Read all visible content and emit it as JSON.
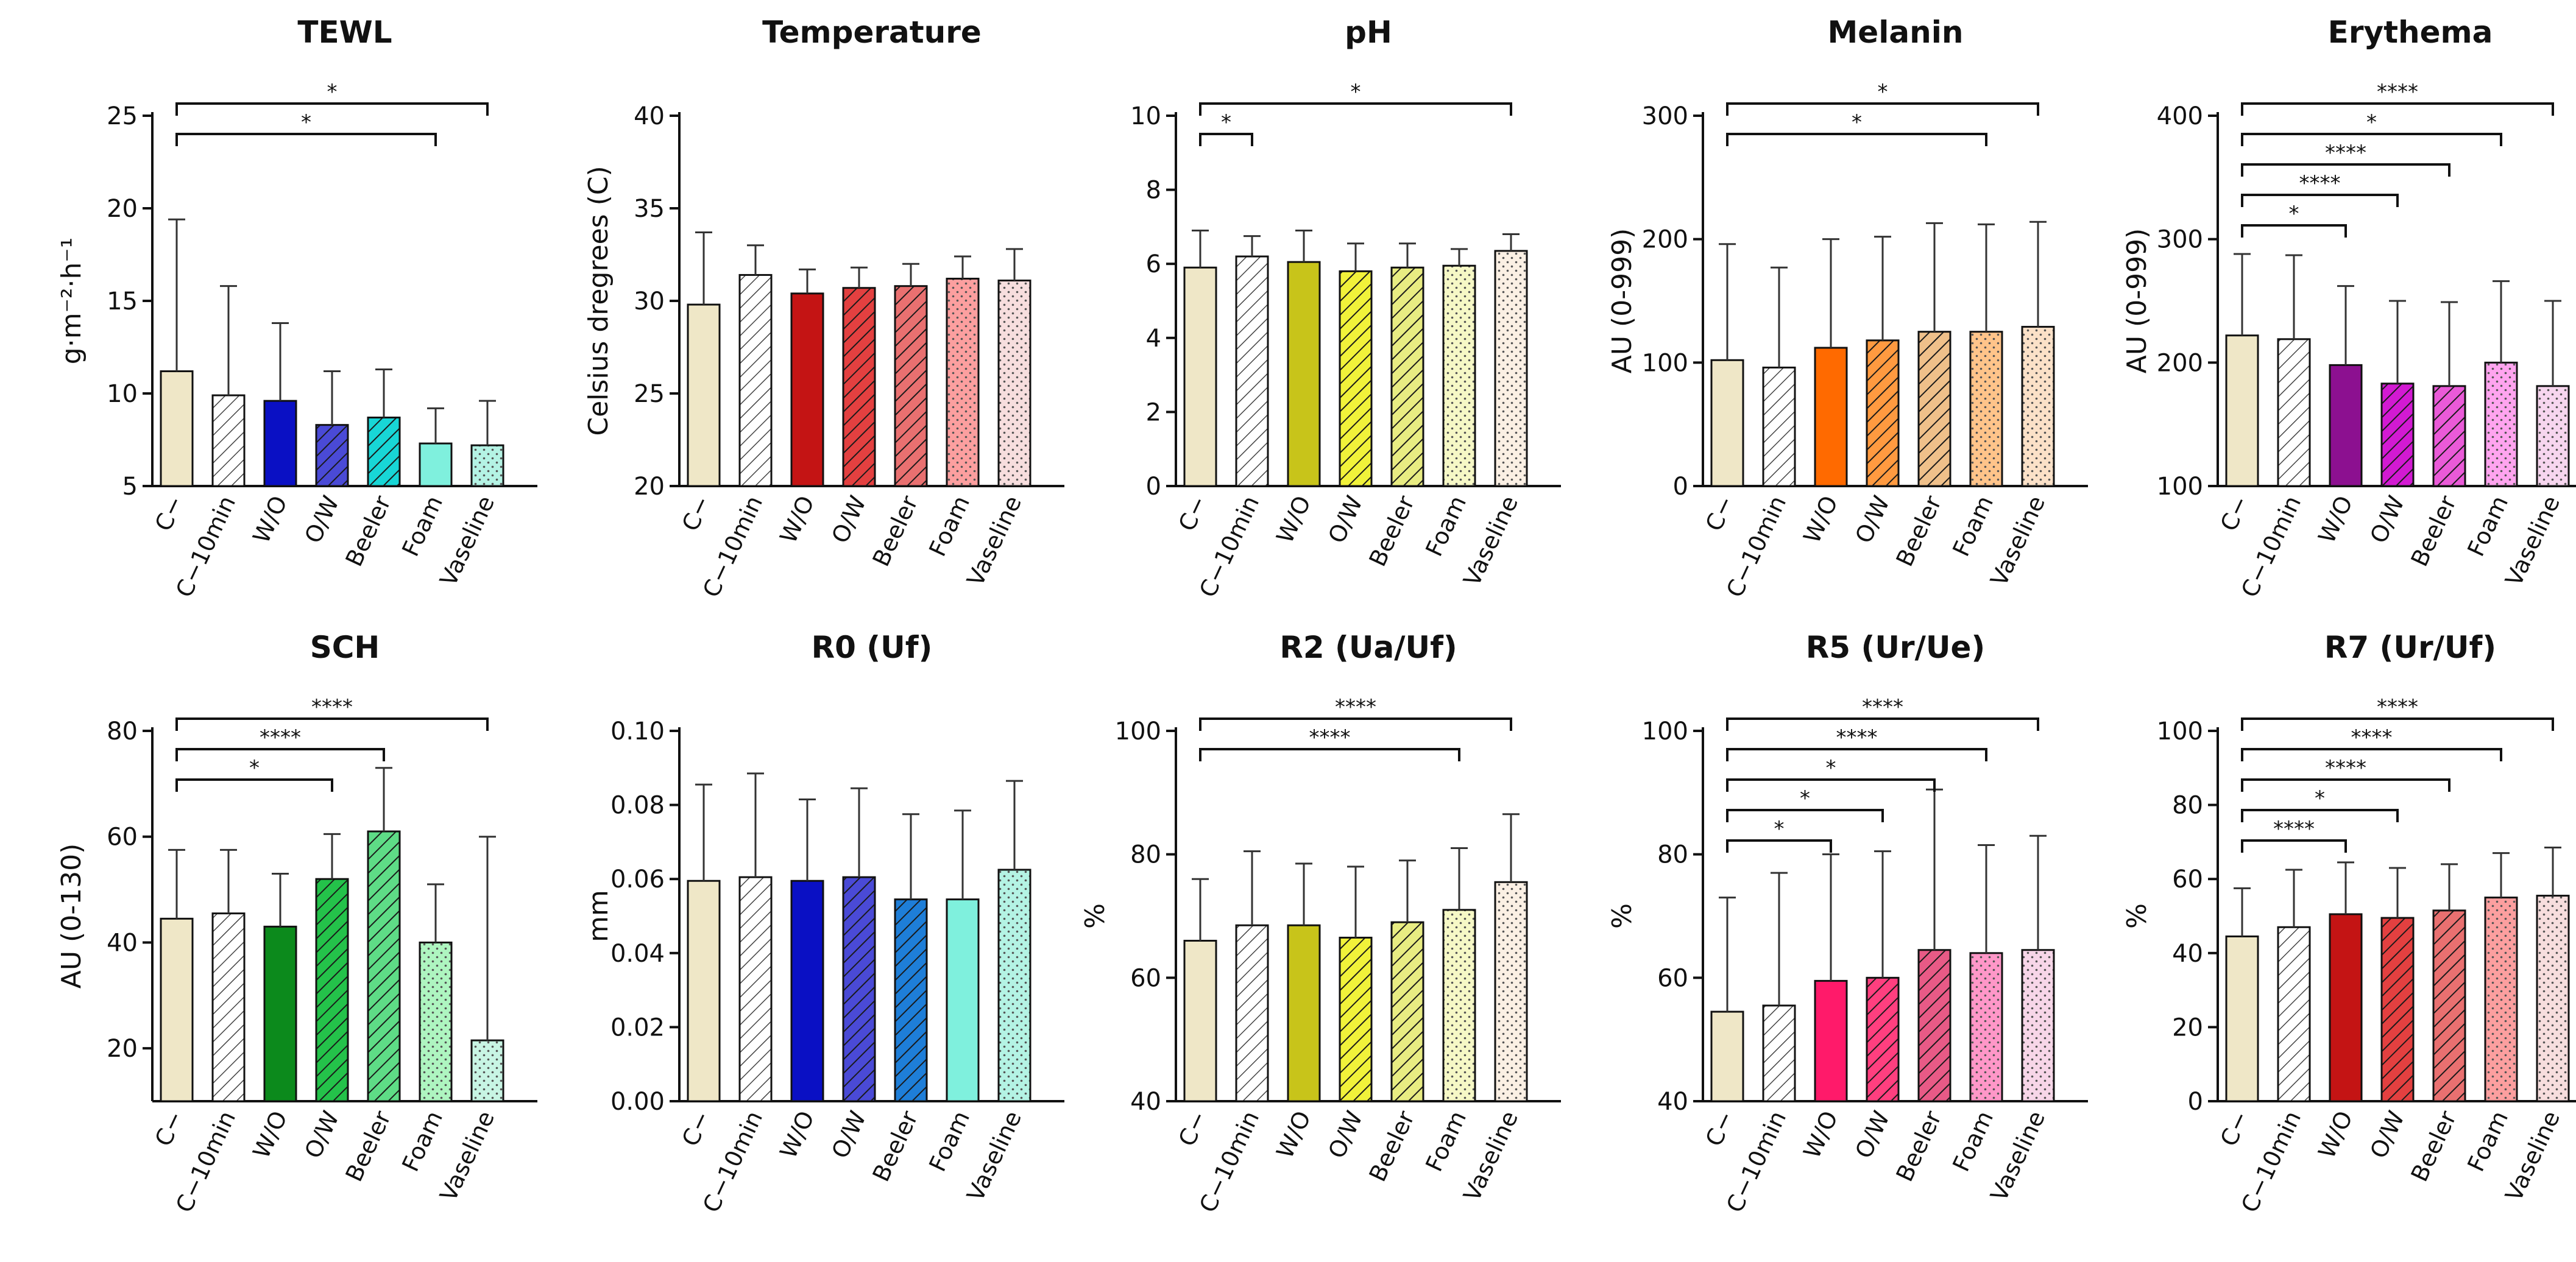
{
  "categories": [
    "C−",
    "C−10min",
    "W/O",
    "O/W",
    "Beeler",
    "Foam",
    "Vaseline"
  ],
  "chart_data": [
    {
      "type": "bar",
      "title": "TEWL",
      "ylabel": "g·m⁻²·h⁻¹",
      "ylim": [
        5,
        25
      ],
      "yticks": [
        5,
        10,
        15,
        20,
        25
      ],
      "ytick_labels": [
        "5",
        "10",
        "15",
        "20",
        "25"
      ],
      "values": [
        11.2,
        9.9,
        9.6,
        8.3,
        8.7,
        7.3,
        7.2
      ],
      "errors": [
        8.2,
        5.9,
        4.2,
        2.9,
        2.6,
        1.9,
        2.4
      ],
      "colors": [
        "#efe7c7",
        "#ffffff",
        "#0a10c4",
        "#4a4ad6",
        "#18d6d6",
        "#7ff0dd",
        "#b4f3e4"
      ],
      "patterns": [
        "solid",
        "hatch-gray",
        "solid",
        "hatch-dark",
        "hatch-dark",
        "solid",
        "dots"
      ],
      "significance": [
        {
          "from": 0,
          "to": 5,
          "label": "*"
        },
        {
          "from": 0,
          "to": 6,
          "label": "*"
        }
      ]
    },
    {
      "type": "bar",
      "title": "Temperature",
      "ylabel": "Celsius dregrees (C)",
      "ylim": [
        20,
        40
      ],
      "yticks": [
        20,
        25,
        30,
        35,
        40
      ],
      "ytick_labels": [
        "20",
        "25",
        "30",
        "35",
        "40"
      ],
      "values": [
        29.8,
        31.4,
        30.4,
        30.7,
        30.8,
        31.2,
        31.1
      ],
      "errors": [
        3.9,
        1.6,
        1.3,
        1.1,
        1.2,
        1.2,
        1.7
      ],
      "colors": [
        "#efe7c7",
        "#ffffff",
        "#c41414",
        "#e34040",
        "#e97070",
        "#fc9f9f",
        "#f7dede"
      ],
      "patterns": [
        "solid",
        "hatch-gray",
        "solid",
        "hatch-dark",
        "hatch-dark",
        "dots",
        "dots"
      ],
      "significance": []
    },
    {
      "type": "bar",
      "title": "pH",
      "ylabel": "",
      "ylim": [
        0,
        10
      ],
      "yticks": [
        0,
        2,
        4,
        6,
        8,
        10
      ],
      "ytick_labels": [
        "0",
        "2",
        "4",
        "6",
        "8",
        "10"
      ],
      "values": [
        5.9,
        6.2,
        6.05,
        5.8,
        5.9,
        5.95,
        6.35
      ],
      "errors": [
        1.0,
        0.55,
        0.85,
        0.75,
        0.65,
        0.45,
        0.45
      ],
      "colors": [
        "#efe7c7",
        "#ffffff",
        "#c8c41a",
        "#f1f23a",
        "#e8ec82",
        "#f6f8c6",
        "#fbf0e4"
      ],
      "patterns": [
        "solid",
        "hatch-gray",
        "solid",
        "hatch-dark",
        "hatch-dark",
        "dots",
        "dots"
      ],
      "significance": [
        {
          "from": 0,
          "to": 1,
          "label": "*"
        },
        {
          "from": 0,
          "to": 6,
          "label": "*"
        }
      ]
    },
    {
      "type": "bar",
      "title": "Melanin",
      "ylabel": "AU (0-999)",
      "ylim": [
        0,
        300
      ],
      "yticks": [
        0,
        100,
        200,
        300
      ],
      "ytick_labels": [
        "0",
        "100",
        "200",
        "300"
      ],
      "values": [
        102,
        96,
        112,
        118,
        125,
        125,
        129
      ],
      "errors": [
        94,
        81,
        88,
        84,
        88,
        87,
        85
      ],
      "colors": [
        "#efe7c7",
        "#ffffff",
        "#ff6a00",
        "#ff9a40",
        "#efc08a",
        "#ffc48a",
        "#fbe1c8"
      ],
      "patterns": [
        "solid",
        "hatch-gray",
        "solid",
        "hatch-dark",
        "hatch-dark",
        "dots",
        "dots"
      ],
      "significance": [
        {
          "from": 0,
          "to": 5,
          "label": "*"
        },
        {
          "from": 0,
          "to": 6,
          "label": "*"
        }
      ]
    },
    {
      "type": "bar",
      "title": "Erythema",
      "ylabel": "AU (0-999)",
      "ylim": [
        100,
        400
      ],
      "yticks": [
        100,
        200,
        300,
        400
      ],
      "ytick_labels": [
        "100",
        "200",
        "300",
        "400"
      ],
      "values": [
        222,
        219,
        198,
        183,
        181,
        200,
        181
      ],
      "errors": [
        66,
        68,
        64,
        67,
        68,
        66,
        69
      ],
      "colors": [
        "#efe7c7",
        "#ffffff",
        "#8c1090",
        "#d21ad2",
        "#ea5ad8",
        "#ffa4ef",
        "#f7d6ef"
      ],
      "patterns": [
        "solid",
        "hatch-gray",
        "solid",
        "hatch-dark",
        "hatch-dark",
        "dots",
        "dots"
      ],
      "significance": [
        {
          "from": 0,
          "to": 2,
          "label": "*"
        },
        {
          "from": 0,
          "to": 3,
          "label": "****"
        },
        {
          "from": 0,
          "to": 4,
          "label": "****"
        },
        {
          "from": 0,
          "to": 5,
          "label": "*"
        },
        {
          "from": 0,
          "to": 6,
          "label": "****"
        }
      ]
    },
    {
      "type": "bar",
      "title": "SCH",
      "ylabel": "AU (0-130)",
      "ylim": [
        10,
        80
      ],
      "yticks": [
        20,
        40,
        60,
        80
      ],
      "ytick_labels": [
        "20",
        "40",
        "60",
        "80"
      ],
      "values": [
        44.5,
        45.5,
        43,
        52,
        61,
        40,
        21.5
      ],
      "errors": [
        13,
        12,
        10,
        8.5,
        12,
        11,
        38.5
      ],
      "colors": [
        "#efe7c7",
        "#ffffff",
        "#0c8a1c",
        "#24c24a",
        "#5edc86",
        "#aef5c0",
        "#c8f5e4"
      ],
      "patterns": [
        "solid",
        "hatch-gray",
        "solid",
        "hatch-dark",
        "hatch-dark",
        "dots",
        "dots"
      ],
      "significance": [
        {
          "from": 0,
          "to": 3,
          "label": "*"
        },
        {
          "from": 0,
          "to": 4,
          "label": "****"
        },
        {
          "from": 0,
          "to": 6,
          "label": "****"
        }
      ]
    },
    {
      "type": "bar",
      "title": "R0 (Uf)",
      "ylabel": "mm",
      "ylim": [
        0,
        0.1
      ],
      "yticks": [
        0,
        0.02,
        0.04,
        0.06,
        0.08,
        0.1
      ],
      "ytick_labels": [
        "0.00",
        "0.02",
        "0.04",
        "0.06",
        "0.08",
        "0.10"
      ],
      "values": [
        0.0595,
        0.0605,
        0.0595,
        0.0605,
        0.0545,
        0.0545,
        0.0625
      ],
      "errors": [
        0.026,
        0.028,
        0.022,
        0.024,
        0.023,
        0.024,
        0.024
      ],
      "colors": [
        "#efe7c7",
        "#ffffff",
        "#0a10c4",
        "#4a4ad6",
        "#1e7ed8",
        "#7ff0dd",
        "#b4f3e4"
      ],
      "patterns": [
        "solid",
        "hatch-gray",
        "solid",
        "hatch-dark",
        "hatch-dark",
        "solid",
        "dots"
      ],
      "significance": []
    },
    {
      "type": "bar",
      "title": "R2 (Ua/Uf)",
      "ylabel": "%",
      "ylim": [
        40,
        100
      ],
      "yticks": [
        40,
        60,
        80,
        100
      ],
      "ytick_labels": [
        "40",
        "60",
        "80",
        "100"
      ],
      "values": [
        66,
        68.5,
        68.5,
        66.5,
        69,
        71,
        75.5
      ],
      "errors": [
        10,
        12,
        10,
        11.5,
        10,
        10,
        11
      ],
      "colors": [
        "#efe7c7",
        "#ffffff",
        "#c8c41a",
        "#f1f23a",
        "#e8ec82",
        "#f6f8c6",
        "#fbf0e4"
      ],
      "patterns": [
        "solid",
        "hatch-gray",
        "solid",
        "hatch-dark",
        "hatch-dark",
        "dots",
        "dots"
      ],
      "significance": [
        {
          "from": 0,
          "to": 5,
          "label": "****"
        },
        {
          "from": 0,
          "to": 6,
          "label": "****"
        }
      ]
    },
    {
      "type": "bar",
      "title": "R5 (Ur/Ue)",
      "ylabel": "%",
      "ylim": [
        40,
        100
      ],
      "yticks": [
        40,
        60,
        80,
        100
      ],
      "ytick_labels": [
        "40",
        "60",
        "80",
        "100"
      ],
      "values": [
        54.5,
        55.5,
        59.5,
        60,
        64.5,
        64,
        64.5
      ],
      "errors": [
        18.5,
        21.5,
        20.5,
        20.5,
        26,
        17.5,
        18.5
      ],
      "colors": [
        "#efe7c7",
        "#ffffff",
        "#ff1a6a",
        "#ff3f7f",
        "#e85a86",
        "#ff97c8",
        "#f7d6e8"
      ],
      "patterns": [
        "solid",
        "hatch-gray",
        "solid",
        "hatch-dark",
        "hatch-dark",
        "dots",
        "dots"
      ],
      "significance": [
        {
          "from": 0,
          "to": 2,
          "label": "*"
        },
        {
          "from": 0,
          "to": 3,
          "label": "*"
        },
        {
          "from": 0,
          "to": 4,
          "label": "*"
        },
        {
          "from": 0,
          "to": 5,
          "label": "****"
        },
        {
          "from": 0,
          "to": 6,
          "label": "****"
        }
      ]
    },
    {
      "type": "bar",
      "title": "R7 (Ur/Uf)",
      "ylabel": "%",
      "ylim": [
        0,
        100
      ],
      "yticks": [
        0,
        20,
        40,
        60,
        80,
        100
      ],
      "ytick_labels": [
        "0",
        "20",
        "40",
        "60",
        "80",
        "100"
      ],
      "values": [
        44.5,
        47,
        50.5,
        49.5,
        51.5,
        55,
        55.5
      ],
      "errors": [
        13,
        15.5,
        14,
        13.5,
        12.5,
        12,
        13
      ],
      "colors": [
        "#efe7c7",
        "#ffffff",
        "#c41414",
        "#e34040",
        "#e97070",
        "#fc9f9f",
        "#f7dede"
      ],
      "patterns": [
        "solid",
        "hatch-gray",
        "solid",
        "hatch-dark",
        "hatch-dark",
        "dots",
        "dots"
      ],
      "significance": [
        {
          "from": 0,
          "to": 2,
          "label": "****"
        },
        {
          "from": 0,
          "to": 3,
          "label": "*"
        },
        {
          "from": 0,
          "to": 4,
          "label": "****"
        },
        {
          "from": 0,
          "to": 5,
          "label": "****"
        },
        {
          "from": 0,
          "to": 6,
          "label": "****"
        }
      ]
    }
  ]
}
